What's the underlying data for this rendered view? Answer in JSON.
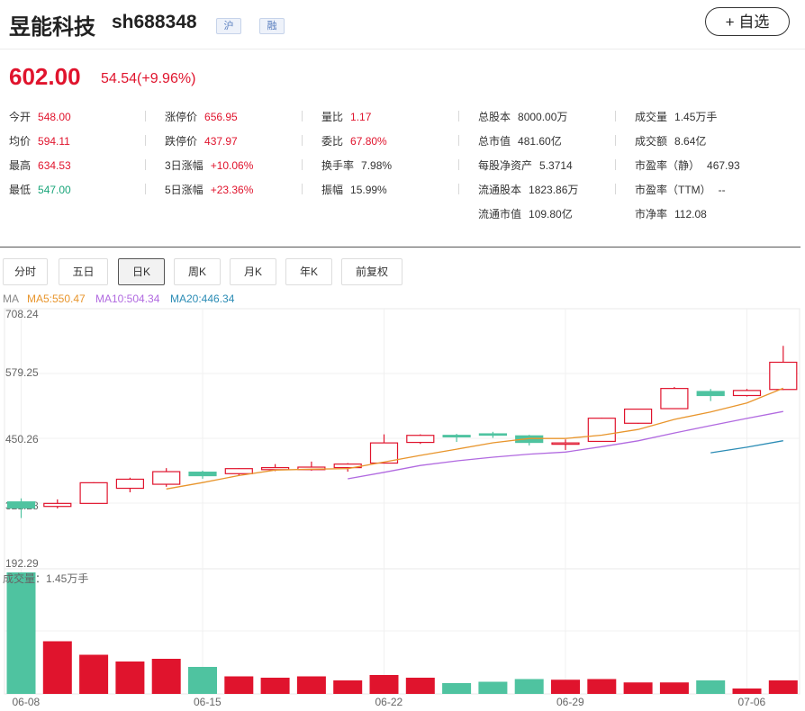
{
  "header": {
    "name": "昱能科技",
    "code": "sh688348",
    "tags": [
      "沪",
      "融"
    ],
    "favorite_label": "+ 自选"
  },
  "quote": {
    "price": "602.00",
    "change": "54.54(+9.96%)",
    "fields": [
      {
        "label": "今开",
        "value": "548.00",
        "color": "red"
      },
      {
        "label": "涨停价",
        "value": "656.95",
        "color": "red"
      },
      {
        "label": "量比",
        "value": "1.17",
        "color": "red"
      },
      {
        "label": "总股本",
        "value": "8000.00万",
        "color": "black"
      },
      {
        "label": "成交量",
        "value": "1.45万手",
        "color": "black"
      },
      {
        "label": "均价",
        "value": "594.11",
        "color": "red"
      },
      {
        "label": "跌停价",
        "value": "437.97",
        "color": "red"
      },
      {
        "label": "委比",
        "value": "67.80%",
        "color": "red"
      },
      {
        "label": "总市值",
        "value": "481.60亿",
        "color": "black"
      },
      {
        "label": "成交额",
        "value": "8.64亿",
        "color": "black"
      },
      {
        "label": "最高",
        "value": "634.53",
        "color": "red"
      },
      {
        "label": "3日涨幅",
        "value": "+10.06%",
        "color": "red"
      },
      {
        "label": "换手率",
        "value": "7.98%",
        "color": "black"
      },
      {
        "label": "每股净资产",
        "value": "5.3714",
        "color": "black"
      },
      {
        "label": "市盈率（静）",
        "value": "467.93",
        "color": "black"
      },
      {
        "label": "最低",
        "value": "547.00",
        "color": "green"
      },
      {
        "label": "5日涨幅",
        "value": "+23.36%",
        "color": "red"
      },
      {
        "label": "振幅",
        "value": "15.99%",
        "color": "black"
      },
      {
        "label": "流通股本",
        "value": "1823.86万",
        "color": "black"
      },
      {
        "label": "市盈率（TTM）",
        "value": "--",
        "color": "black"
      },
      {
        "label": "流通市值",
        "value": "109.80亿",
        "color": "black"
      },
      {
        "label": "市净率",
        "value": "112.08",
        "color": "black"
      }
    ]
  },
  "tabs": [
    "分时",
    "五日",
    "日K",
    "周K",
    "月K",
    "年K",
    "前复权"
  ],
  "active_tab": "日K",
  "ma_legend": {
    "prefix": "MA",
    "items": [
      {
        "label": "MA5:550.47",
        "color": "#e8952c"
      },
      {
        "label": "MA10:504.34",
        "color": "#b16ae0"
      },
      {
        "label": "MA20:446.34",
        "color": "#2b8cb5"
      }
    ]
  },
  "colors": {
    "up": "#e0142d",
    "down": "#4fc3a0",
    "ma5": "#e8952c",
    "ma10": "#b16ae0",
    "ma20": "#2b8cb5"
  },
  "chart_data": [
    {
      "type": "candlestick",
      "y_ticks": [
        "708.24",
        "579.25",
        "450.26",
        "321.28",
        "192.29"
      ],
      "ylim": [
        192.29,
        708.24
      ],
      "x_tick_labels": [
        {
          "index": 0,
          "label": "06-08"
        },
        {
          "index": 5,
          "label": "06-15"
        },
        {
          "index": 10,
          "label": "06-22"
        },
        {
          "index": 15,
          "label": "06-29"
        },
        {
          "index": 20,
          "label": "07-06"
        }
      ],
      "candles": [
        {
          "o": 325,
          "h": 332,
          "l": 293,
          "c": 313
        },
        {
          "o": 316,
          "h": 330,
          "l": 312,
          "c": 322
        },
        {
          "o": 322,
          "h": 364,
          "l": 322,
          "c": 363
        },
        {
          "o": 352,
          "h": 373,
          "l": 344,
          "c": 370
        },
        {
          "o": 360,
          "h": 392,
          "l": 355,
          "c": 385
        },
        {
          "o": 384,
          "h": 387,
          "l": 371,
          "c": 377
        },
        {
          "o": 381,
          "h": 392,
          "l": 378,
          "c": 391
        },
        {
          "o": 389,
          "h": 400,
          "l": 386,
          "c": 393
        },
        {
          "o": 389,
          "h": 405,
          "l": 387,
          "c": 394
        },
        {
          "o": 393,
          "h": 402,
          "l": 385,
          "c": 400
        },
        {
          "o": 402,
          "h": 459,
          "l": 402,
          "c": 442
        },
        {
          "o": 443,
          "h": 459,
          "l": 440,
          "c": 457
        },
        {
          "o": 457,
          "h": 460,
          "l": 444,
          "c": 454
        },
        {
          "o": 460,
          "h": 464,
          "l": 452,
          "c": 458
        },
        {
          "o": 456,
          "h": 458,
          "l": 437,
          "c": 443
        },
        {
          "o": 442,
          "h": 449,
          "l": 428,
          "c": 442
        },
        {
          "o": 445,
          "h": 492,
          "l": 445,
          "c": 491
        },
        {
          "o": 481,
          "h": 510,
          "l": 480,
          "c": 509
        },
        {
          "o": 510,
          "h": 553,
          "l": 510,
          "c": 550
        },
        {
          "o": 544,
          "h": 549,
          "l": 525,
          "c": 536
        },
        {
          "o": 536,
          "h": 549,
          "l": 534,
          "c": 546
        },
        {
          "o": 548,
          "h": 634.53,
          "l": 547,
          "c": 602
        }
      ],
      "ma5": [
        null,
        null,
        null,
        null,
        350.6,
        363.4,
        377.2,
        388.2,
        390.0,
        391.0,
        404.0,
        417.2,
        429.6,
        442.2,
        450.8,
        450.8,
        457.4,
        468.6,
        488.6,
        503.4,
        521.4,
        550.47
      ],
      "ma10": [
        null,
        null,
        null,
        null,
        null,
        null,
        null,
        null,
        null,
        370.8,
        383.7,
        397.2,
        406.3,
        413.6,
        419.7,
        423.9,
        434.5,
        446.1,
        461.7,
        476.3,
        490.7,
        504.34
      ],
      "ma20": [
        null,
        null,
        null,
        null,
        null,
        null,
        null,
        null,
        null,
        null,
        null,
        null,
        null,
        null,
        null,
        null,
        null,
        null,
        null,
        422.5,
        433.4,
        446.34
      ],
      "volume": {
        "label": "成交量：1.45万手",
        "values": [
          9.0,
          3.9,
          2.9,
          2.4,
          2.6,
          2.0,
          1.3,
          1.2,
          1.3,
          1.0,
          1.4,
          1.2,
          0.8,
          0.9,
          1.1,
          1.05,
          1.1,
          0.85,
          0.85,
          1.0,
          0.4,
          1.0
        ]
      }
    }
  ]
}
